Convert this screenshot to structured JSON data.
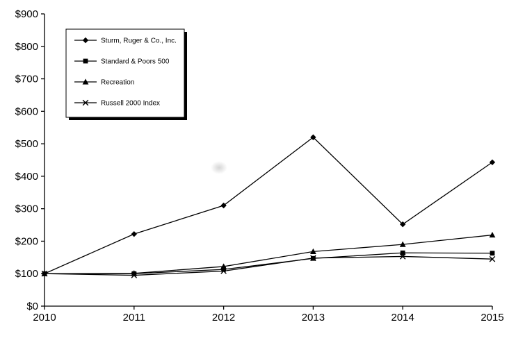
{
  "chart_data": {
    "type": "line",
    "title": "",
    "categories": [
      "2010",
      "2011",
      "2012",
      "2013",
      "2014",
      "2015"
    ],
    "yticks": [
      "$0",
      "$100",
      "$200",
      "$300",
      "$400",
      "$500",
      "$600",
      "$700",
      "$800",
      "$900"
    ],
    "ylim": [
      0,
      900
    ],
    "ytick_step": 100,
    "grid": false,
    "legend_position": "top-left",
    "background": "#ffffff",
    "axis_color": "#000000",
    "series": [
      {
        "name": "Sturm, Ruger & Co., Inc.",
        "marker": "diamond",
        "color": "#000000",
        "values": [
          100,
          222,
          310,
          520,
          252,
          443
        ]
      },
      {
        "name": "Standard & Poors 500",
        "marker": "square",
        "color": "#000000",
        "values": [
          100,
          100,
          113,
          147,
          164,
          163
        ]
      },
      {
        "name": "Recreation",
        "marker": "triangle",
        "color": "#000000",
        "values": [
          100,
          101,
          122,
          168,
          190,
          219
        ]
      },
      {
        "name": "Russell 2000 Index",
        "marker": "x",
        "color": "#000000",
        "values": [
          100,
          95,
          108,
          148,
          153,
          145
        ]
      }
    ]
  }
}
